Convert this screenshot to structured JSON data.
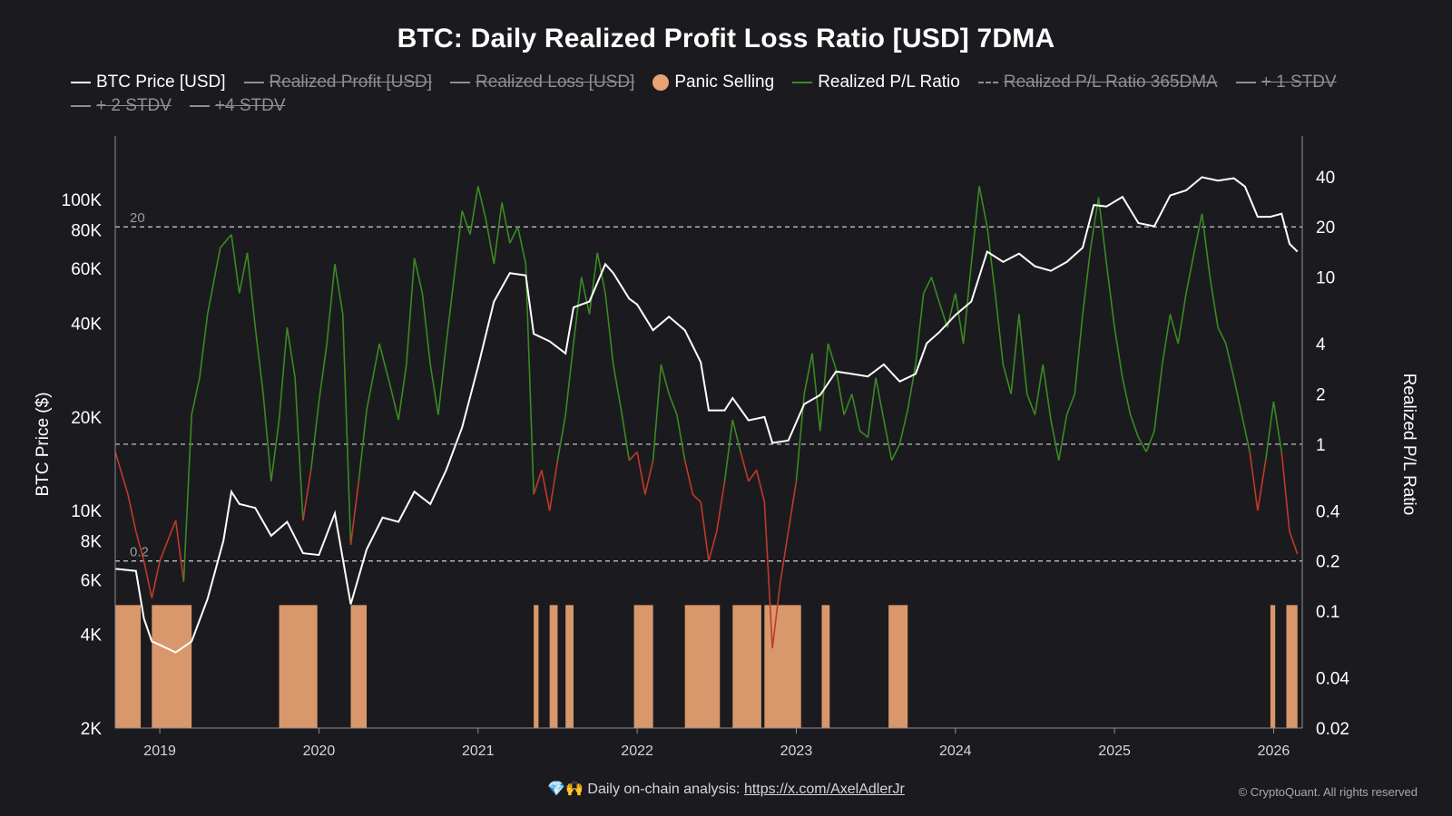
{
  "title": "BTC: Daily Realized Profit Loss Ratio [USD] 7DMA",
  "legend": [
    {
      "label": "BTC Price [USD]",
      "kind": "line",
      "color": "#ffffff",
      "active": true
    },
    {
      "label": "Realized Profit [USD]",
      "kind": "line",
      "color": "#8e8e95",
      "active": false
    },
    {
      "label": "Realized Loss [USD]",
      "kind": "line",
      "color": "#8e8e95",
      "active": false
    },
    {
      "label": "Panic Selling",
      "kind": "dot",
      "color": "#e8a372",
      "active": true
    },
    {
      "label": "Realized P/L Ratio",
      "kind": "line",
      "color": "#3a8a22",
      "active": true
    },
    {
      "label": "Realized P/L Ratio 365DMA",
      "kind": "dash",
      "color": "#8e8e95",
      "active": false
    },
    {
      "label": "+ 1 STDV",
      "kind": "line",
      "color": "#8e8e95",
      "active": false
    },
    {
      "label": "+ 2 STDV",
      "kind": "line",
      "color": "#8e8e95",
      "active": false
    },
    {
      "label": "+4 STDV",
      "kind": "line",
      "color": "#8e8e95",
      "active": false
    }
  ],
  "axes": {
    "left_label": "BTC Price ($)",
    "right_label": "Realized P/L Ratio"
  },
  "footer": {
    "icons": "💎🙌",
    "text": "Daily on-chain analysis: ",
    "link": "https://x.com/AxelAdlerJr",
    "copyright": "© CryptoQuant. All rights reserved"
  },
  "chart_data": {
    "type": "line",
    "x_range": [
      2018.72,
      2026.18
    ],
    "x_ticks": [
      "2019",
      "2020",
      "2021",
      "2022",
      "2023",
      "2024",
      "2025",
      "2026"
    ],
    "left_axis": {
      "scale": "log",
      "range": [
        2000,
        160000
      ],
      "ticks": [
        [
          100000,
          "100K"
        ],
        [
          80000,
          "80K"
        ],
        [
          60000,
          "60K"
        ],
        [
          40000,
          "40K"
        ],
        [
          20000,
          "20K"
        ],
        [
          10000,
          "10K"
        ],
        [
          8000,
          "8K"
        ],
        [
          6000,
          "6K"
        ],
        [
          4000,
          "4K"
        ],
        [
          2000,
          "2K"
        ]
      ]
    },
    "right_axis": {
      "scale": "log",
      "range": [
        0.02,
        70
      ],
      "ticks": [
        [
          40,
          "40"
        ],
        [
          20,
          "20"
        ],
        [
          10,
          "10"
        ],
        [
          4,
          "4"
        ],
        [
          2,
          "2"
        ],
        [
          1,
          "1"
        ],
        [
          0.4,
          "0.4"
        ],
        [
          0.2,
          "0.2"
        ],
        [
          0.1,
          "0.1"
        ],
        [
          0.04,
          "0.04"
        ],
        [
          0.02,
          "0.02"
        ]
      ]
    },
    "reference_lines": [
      {
        "value": 20,
        "label": "20"
      },
      {
        "value": 1,
        "label": ""
      },
      {
        "value": 0.2,
        "label": "0.2"
      }
    ],
    "series": [
      {
        "name": "BTC Price [USD]",
        "axis": "left",
        "color": "#ffffff",
        "points": [
          [
            2018.72,
            6500
          ],
          [
            2018.85,
            6400
          ],
          [
            2018.9,
            4500
          ],
          [
            2018.95,
            3800
          ],
          [
            2019.0,
            3700
          ],
          [
            2019.1,
            3500
          ],
          [
            2019.2,
            3800
          ],
          [
            2019.3,
            5200
          ],
          [
            2019.4,
            8000
          ],
          [
            2019.45,
            11500
          ],
          [
            2019.5,
            10500
          ],
          [
            2019.6,
            10200
          ],
          [
            2019.7,
            8300
          ],
          [
            2019.8,
            9200
          ],
          [
            2019.9,
            7300
          ],
          [
            2020.0,
            7200
          ],
          [
            2020.1,
            9800
          ],
          [
            2020.2,
            5000
          ],
          [
            2020.3,
            7500
          ],
          [
            2020.4,
            9500
          ],
          [
            2020.5,
            9200
          ],
          [
            2020.6,
            11500
          ],
          [
            2020.7,
            10500
          ],
          [
            2020.8,
            13500
          ],
          [
            2020.9,
            18500
          ],
          [
            2021.0,
            29000
          ],
          [
            2021.1,
            47000
          ],
          [
            2021.2,
            58000
          ],
          [
            2021.3,
            57000
          ],
          [
            2021.35,
            37000
          ],
          [
            2021.45,
            35000
          ],
          [
            2021.55,
            32000
          ],
          [
            2021.6,
            45000
          ],
          [
            2021.7,
            47000
          ],
          [
            2021.8,
            62000
          ],
          [
            2021.85,
            58000
          ],
          [
            2021.95,
            48000
          ],
          [
            2022.0,
            46000
          ],
          [
            2022.1,
            38000
          ],
          [
            2022.2,
            42000
          ],
          [
            2022.3,
            38000
          ],
          [
            2022.4,
            30000
          ],
          [
            2022.45,
            21000
          ],
          [
            2022.55,
            21000
          ],
          [
            2022.6,
            23000
          ],
          [
            2022.7,
            19500
          ],
          [
            2022.8,
            20000
          ],
          [
            2022.85,
            16500
          ],
          [
            2022.95,
            16800
          ],
          [
            2023.05,
            22000
          ],
          [
            2023.15,
            23500
          ],
          [
            2023.25,
            28000
          ],
          [
            2023.35,
            27500
          ],
          [
            2023.45,
            27000
          ],
          [
            2023.55,
            29500
          ],
          [
            2023.65,
            26000
          ],
          [
            2023.75,
            27500
          ],
          [
            2023.82,
            34500
          ],
          [
            2023.9,
            37500
          ],
          [
            2024.0,
            42500
          ],
          [
            2024.1,
            47000
          ],
          [
            2024.2,
            68000
          ],
          [
            2024.3,
            63000
          ],
          [
            2024.4,
            67000
          ],
          [
            2024.5,
            61000
          ],
          [
            2024.6,
            59000
          ],
          [
            2024.7,
            63000
          ],
          [
            2024.8,
            70000
          ],
          [
            2024.87,
            96000
          ],
          [
            2024.95,
            95000
          ],
          [
            2025.05,
            102000
          ],
          [
            2025.15,
            84000
          ],
          [
            2025.25,
            82000
          ],
          [
            2025.35,
            103000
          ],
          [
            2025.45,
            107000
          ],
          [
            2025.55,
            118000
          ],
          [
            2025.65,
            115000
          ],
          [
            2025.75,
            117000
          ],
          [
            2025.82,
            110000
          ],
          [
            2025.9,
            88000
          ],
          [
            2025.98,
            88000
          ],
          [
            2026.05,
            90000
          ],
          [
            2026.1,
            72000
          ],
          [
            2026.15,
            68000
          ]
        ]
      },
      {
        "name": "Realized P/L Ratio",
        "axis": "right",
        "color": "#3a8a22",
        "color_below_1": "#c0392b",
        "points": [
          [
            2018.72,
            0.9
          ],
          [
            2018.8,
            0.5
          ],
          [
            2018.85,
            0.3
          ],
          [
            2018.9,
            0.2
          ],
          [
            2018.95,
            0.12
          ],
          [
            2019.0,
            0.2
          ],
          [
            2019.1,
            0.35
          ],
          [
            2019.15,
            0.15
          ],
          [
            2019.2,
            1.5
          ],
          [
            2019.25,
            2.5
          ],
          [
            2019.3,
            6
          ],
          [
            2019.38,
            15
          ],
          [
            2019.45,
            18
          ],
          [
            2019.5,
            8
          ],
          [
            2019.55,
            14
          ],
          [
            2019.6,
            5
          ],
          [
            2019.65,
            2
          ],
          [
            2019.7,
            0.6
          ],
          [
            2019.75,
            1.4
          ],
          [
            2019.8,
            5
          ],
          [
            2019.85,
            2.5
          ],
          [
            2019.9,
            0.35
          ],
          [
            2019.95,
            0.7
          ],
          [
            2020.0,
            1.8
          ],
          [
            2020.05,
            4
          ],
          [
            2020.1,
            12
          ],
          [
            2020.15,
            6
          ],
          [
            2020.2,
            0.25
          ],
          [
            2020.25,
            0.6
          ],
          [
            2020.3,
            1.6
          ],
          [
            2020.38,
            4
          ],
          [
            2020.45,
            2.2
          ],
          [
            2020.5,
            1.4
          ],
          [
            2020.55,
            3
          ],
          [
            2020.6,
            13
          ],
          [
            2020.65,
            8
          ],
          [
            2020.7,
            3
          ],
          [
            2020.75,
            1.5
          ],
          [
            2020.8,
            4
          ],
          [
            2020.85,
            10
          ],
          [
            2020.9,
            25
          ],
          [
            2020.95,
            18
          ],
          [
            2021.0,
            35
          ],
          [
            2021.05,
            22
          ],
          [
            2021.1,
            12
          ],
          [
            2021.15,
            28
          ],
          [
            2021.2,
            16
          ],
          [
            2021.25,
            20
          ],
          [
            2021.3,
            12
          ],
          [
            2021.35,
            0.5
          ],
          [
            2021.4,
            0.7
          ],
          [
            2021.45,
            0.4
          ],
          [
            2021.5,
            0.8
          ],
          [
            2021.55,
            1.5
          ],
          [
            2021.6,
            4
          ],
          [
            2021.65,
            10
          ],
          [
            2021.7,
            6
          ],
          [
            2021.75,
            14
          ],
          [
            2021.8,
            8
          ],
          [
            2021.85,
            3
          ],
          [
            2021.9,
            1.6
          ],
          [
            2021.95,
            0.8
          ],
          [
            2022.0,
            0.9
          ],
          [
            2022.05,
            0.5
          ],
          [
            2022.1,
            0.8
          ],
          [
            2022.15,
            3
          ],
          [
            2022.2,
            2
          ],
          [
            2022.25,
            1.5
          ],
          [
            2022.3,
            0.8
          ],
          [
            2022.35,
            0.5
          ],
          [
            2022.4,
            0.45
          ],
          [
            2022.45,
            0.2
          ],
          [
            2022.5,
            0.3
          ],
          [
            2022.55,
            0.6
          ],
          [
            2022.6,
            1.4
          ],
          [
            2022.65,
            0.9
          ],
          [
            2022.7,
            0.6
          ],
          [
            2022.75,
            0.7
          ],
          [
            2022.8,
            0.45
          ],
          [
            2022.85,
            0.06
          ],
          [
            2022.9,
            0.15
          ],
          [
            2022.95,
            0.3
          ],
          [
            2023.0,
            0.6
          ],
          [
            2023.05,
            2
          ],
          [
            2023.1,
            3.5
          ],
          [
            2023.15,
            1.2
          ],
          [
            2023.2,
            4
          ],
          [
            2023.25,
            2.8
          ],
          [
            2023.3,
            1.5
          ],
          [
            2023.35,
            2
          ],
          [
            2023.4,
            1.2
          ],
          [
            2023.45,
            1.1
          ],
          [
            2023.5,
            2.5
          ],
          [
            2023.55,
            1.4
          ],
          [
            2023.6,
            0.8
          ],
          [
            2023.65,
            1.0
          ],
          [
            2023.7,
            1.6
          ],
          [
            2023.75,
            3
          ],
          [
            2023.8,
            8
          ],
          [
            2023.85,
            10
          ],
          [
            2023.9,
            7
          ],
          [
            2023.95,
            5
          ],
          [
            2024.0,
            8
          ],
          [
            2024.05,
            4
          ],
          [
            2024.1,
            12
          ],
          [
            2024.15,
            35
          ],
          [
            2024.2,
            20
          ],
          [
            2024.25,
            8
          ],
          [
            2024.3,
            3
          ],
          [
            2024.35,
            2
          ],
          [
            2024.4,
            6
          ],
          [
            2024.45,
            2
          ],
          [
            2024.5,
            1.5
          ],
          [
            2024.55,
            3
          ],
          [
            2024.6,
            1.4
          ],
          [
            2024.65,
            0.8
          ],
          [
            2024.7,
            1.5
          ],
          [
            2024.75,
            2
          ],
          [
            2024.8,
            6
          ],
          [
            2024.85,
            15
          ],
          [
            2024.9,
            30
          ],
          [
            2024.95,
            12
          ],
          [
            2025.0,
            5
          ],
          [
            2025.05,
            2.5
          ],
          [
            2025.1,
            1.5
          ],
          [
            2025.15,
            1.1
          ],
          [
            2025.2,
            0.9
          ],
          [
            2025.25,
            1.2
          ],
          [
            2025.3,
            3
          ],
          [
            2025.35,
            6
          ],
          [
            2025.4,
            4
          ],
          [
            2025.45,
            8
          ],
          [
            2025.5,
            14
          ],
          [
            2025.55,
            24
          ],
          [
            2025.6,
            10
          ],
          [
            2025.65,
            5
          ],
          [
            2025.7,
            4
          ],
          [
            2025.75,
            2.5
          ],
          [
            2025.8,
            1.5
          ],
          [
            2025.85,
            0.9
          ],
          [
            2025.9,
            0.4
          ],
          [
            2025.95,
            0.8
          ],
          [
            2026.0,
            1.8
          ],
          [
            2026.05,
            0.9
          ],
          [
            2026.1,
            0.3
          ],
          [
            2026.15,
            0.22
          ]
        ]
      }
    ],
    "panic_selling": {
      "color": "#e8a372",
      "periods": [
        [
          2018.72,
          2018.88
        ],
        [
          2018.95,
          2019.2
        ],
        [
          2019.75,
          2019.99
        ],
        [
          2020.2,
          2020.3
        ],
        [
          2021.35,
          2021.38
        ],
        [
          2021.45,
          2021.5
        ],
        [
          2021.55,
          2021.6
        ],
        [
          2021.98,
          2022.1
        ],
        [
          2022.3,
          2022.52
        ],
        [
          2022.6,
          2022.78
        ],
        [
          2022.8,
          2023.03
        ],
        [
          2023.16,
          2023.21
        ],
        [
          2023.58,
          2023.7
        ],
        [
          2025.98,
          2026.01
        ],
        [
          2026.08,
          2026.15
        ]
      ]
    }
  }
}
